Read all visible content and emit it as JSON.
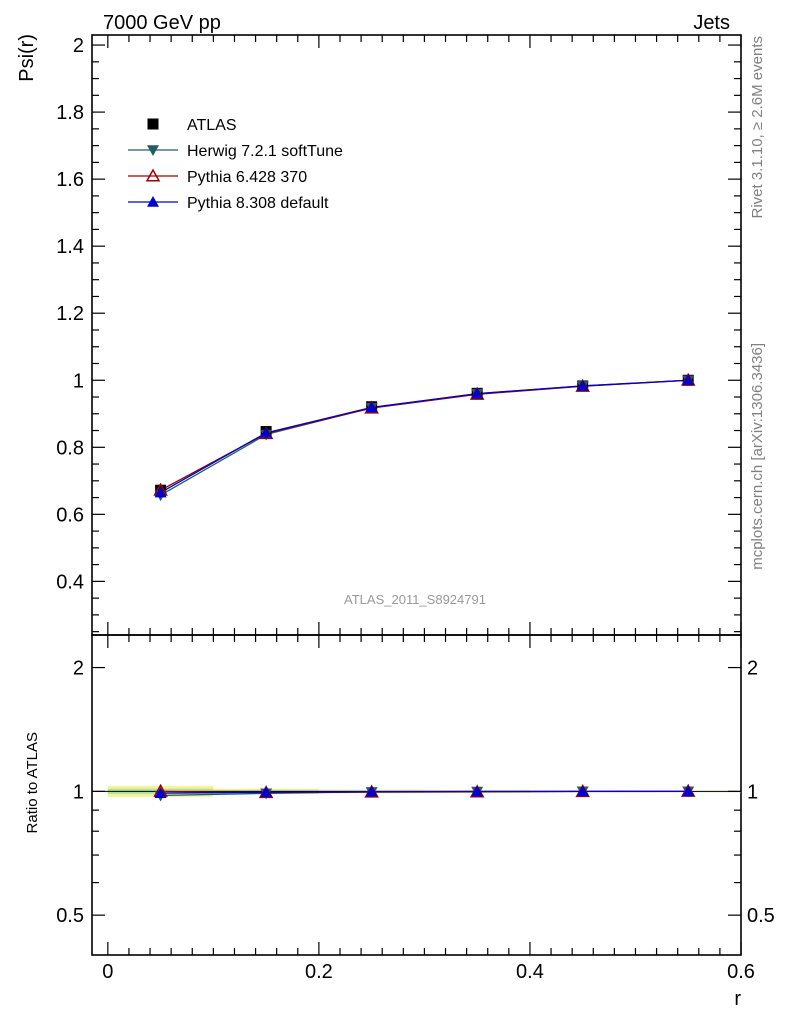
{
  "header": {
    "left": "7000 GeV pp",
    "right": "Jets"
  },
  "side_labels": {
    "top": "Rivet 3.1.10, ≥ 2.6M events",
    "bottom": "mcplots.cern.ch [arXiv:1306.3436]"
  },
  "watermark": "ATLAS_2011_S8924791",
  "chart_data": [
    {
      "type": "line",
      "panel": "main",
      "ylabel": "Psi(r)",
      "xlabel": "r",
      "xlim": [
        -0.015,
        0.6
      ],
      "ylim": [
        0.24,
        2.03
      ],
      "yticks": [
        0.4,
        0.6,
        0.8,
        1,
        1.2,
        1.4,
        1.6,
        1.8,
        2
      ],
      "ytick_labels": [
        "0.4",
        "0.6",
        "0.8",
        "1",
        "1.2",
        "1.4",
        "1.6",
        "1.8",
        "2"
      ],
      "x": [
        0.05,
        0.15,
        0.25,
        0.35,
        0.45,
        0.55
      ],
      "series": [
        {
          "name": "ATLAS",
          "marker": "square",
          "color": "#000000",
          "line": false,
          "values": [
            0.672,
            0.847,
            0.921,
            0.961,
            0.983,
            1.0
          ]
        },
        {
          "name": "Herwig 7.2.1 softTune",
          "marker": "triangle-down",
          "color": "#1f5f63",
          "line": true,
          "values": [
            0.657,
            0.838,
            0.918,
            0.96,
            0.983,
            1.0
          ]
        },
        {
          "name": "Pythia 6.428 370",
          "marker": "triangle-up-open",
          "color": "#a00000",
          "line": true,
          "values": [
            0.672,
            0.841,
            0.917,
            0.958,
            0.982,
            1.0
          ]
        },
        {
          "name": "Pythia 8.308 default",
          "marker": "triangle-up",
          "color": "#0000d0",
          "line": true,
          "values": [
            0.665,
            0.843,
            0.919,
            0.96,
            0.983,
            1.0
          ]
        }
      ],
      "legend_placement": "top-left"
    },
    {
      "type": "line",
      "panel": "ratio",
      "ylabel": "Ratio to ATLAS",
      "xlabel": "r",
      "xlim": [
        -0.015,
        0.6
      ],
      "ylim": [
        0.4,
        2.4
      ],
      "log_y": true,
      "yticks": [
        0.5,
        1,
        2
      ],
      "ytick_labels": [
        "0.5",
        "1",
        "2"
      ],
      "xticks": [
        0,
        0.2,
        0.4,
        0.6
      ],
      "xtick_labels": [
        "0",
        "0.2",
        "0.4",
        "0.6"
      ],
      "x": [
        0.05,
        0.15,
        0.25,
        0.35,
        0.45,
        0.55
      ],
      "bands": [
        {
          "name": "ATLAS uncertainty (total)",
          "color": "#f5f58a",
          "x0": [
            0.0,
            0.1,
            0.2,
            0.3,
            0.4,
            0.5
          ],
          "x1": [
            0.1,
            0.2,
            0.3,
            0.4,
            0.5,
            0.6
          ],
          "half_width": [
            0.03,
            0.015,
            0.01,
            0.008,
            0.005,
            0.001
          ]
        },
        {
          "name": "ATLAS uncertainty (stat)",
          "color": "#b2e0a8",
          "x0": [
            0.0,
            0.1,
            0.2,
            0.3,
            0.4,
            0.5
          ],
          "x1": [
            0.1,
            0.2,
            0.3,
            0.4,
            0.5,
            0.6
          ],
          "half_width": [
            0.015,
            0.008,
            0.005,
            0.004,
            0.003,
            0.001
          ]
        }
      ],
      "series": [
        {
          "name": "Herwig 7.2.1 softTune",
          "marker": "triangle-down",
          "color": "#1f5f63",
          "values": [
            0.977,
            0.989,
            0.997,
            0.999,
            1.0,
            1.0
          ]
        },
        {
          "name": "Pythia 6.428 370",
          "marker": "triangle-up-open",
          "color": "#a00000",
          "values": [
            1.0,
            0.993,
            0.996,
            0.997,
            0.999,
            1.0
          ]
        },
        {
          "name": "Pythia 8.308 default",
          "marker": "triangle-up",
          "color": "#0000d0",
          "values": [
            0.99,
            0.995,
            0.998,
            0.999,
            1.0,
            1.0
          ]
        }
      ]
    }
  ]
}
